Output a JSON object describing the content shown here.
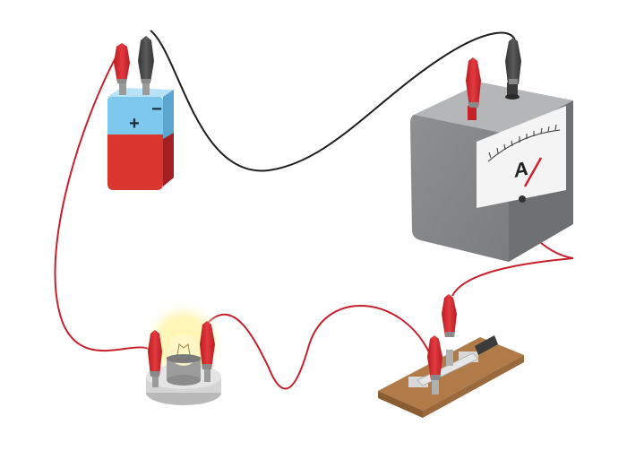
{
  "battery": {
    "plus_label": "+",
    "minus_label": "−"
  },
  "ammeter": {
    "symbol": "A"
  },
  "colors": {
    "wire_red": "#c8202a",
    "wire_black": "#1e1e1e",
    "clip_red": "#d2232a",
    "clip_black": "#4a4a4a",
    "battery_top": "#7ec8ee",
    "battery_body": "#d9362d",
    "meter_case": "#8e8f91",
    "bulb_glow": "#fff3a0",
    "switch_base": "#b07b48"
  }
}
